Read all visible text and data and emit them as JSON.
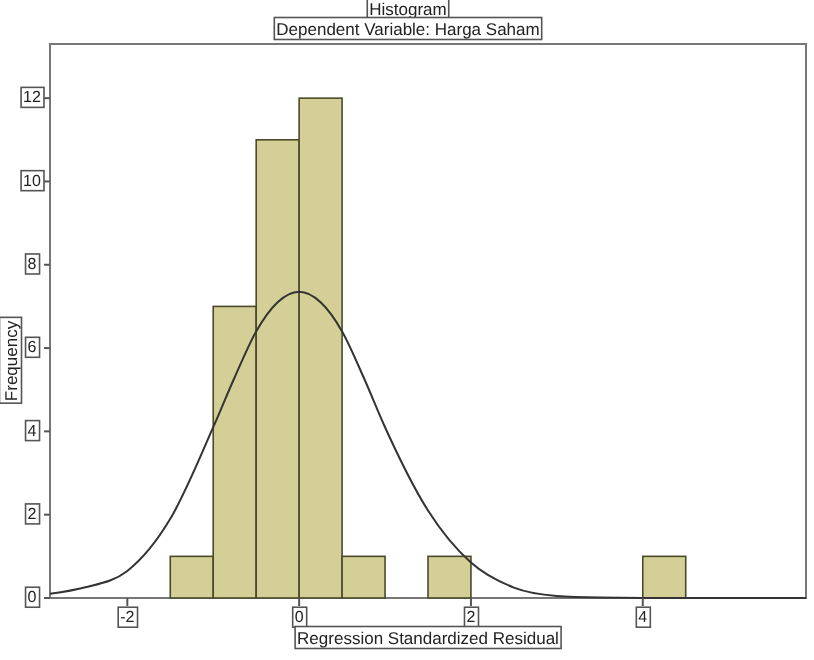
{
  "chart_data": {
    "type": "histogram",
    "title": "Histogram",
    "subtitle": "Dependent Variable: Harga Saham",
    "xlabel": "Regression Standardized Residual",
    "ylabel": "Frequency",
    "bins": [
      -1.5,
      -1,
      -0.5,
      0,
      0.5,
      1,
      1.5,
      2,
      2.5,
      3,
      3.5,
      4,
      4.5
    ],
    "values": [
      1,
      7,
      11,
      12,
      1,
      0,
      1,
      0,
      0,
      0,
      0,
      1
    ],
    "color": "#d4cf96",
    "series": [
      {
        "type": "line",
        "color": "#333333",
        "x": [
          -2.9,
          -2.5,
          -2,
          -1.5,
          -1,
          -0.75,
          -0.5,
          -0.25,
          0,
          0.25,
          0.5,
          0.75,
          1,
          1.5,
          2,
          2.5,
          3,
          3.5,
          4,
          4.5,
          5.9
        ],
        "values": [
          0.1,
          0.25,
          0.65,
          1.9,
          4.1,
          5.3,
          6.4,
          7.1,
          7.35,
          7.1,
          6.4,
          5.3,
          4.1,
          2.1,
          0.85,
          0.25,
          0.05,
          0.01,
          0,
          0,
          0
        ]
      }
    ],
    "xlim": [
      -2.9,
      5.9
    ],
    "xticks": [
      -2,
      0,
      2,
      4
    ],
    "ylim": [
      0,
      13.3
    ],
    "yticks": [
      0,
      2,
      4,
      6,
      8,
      10,
      12
    ],
    "grid": false
  }
}
